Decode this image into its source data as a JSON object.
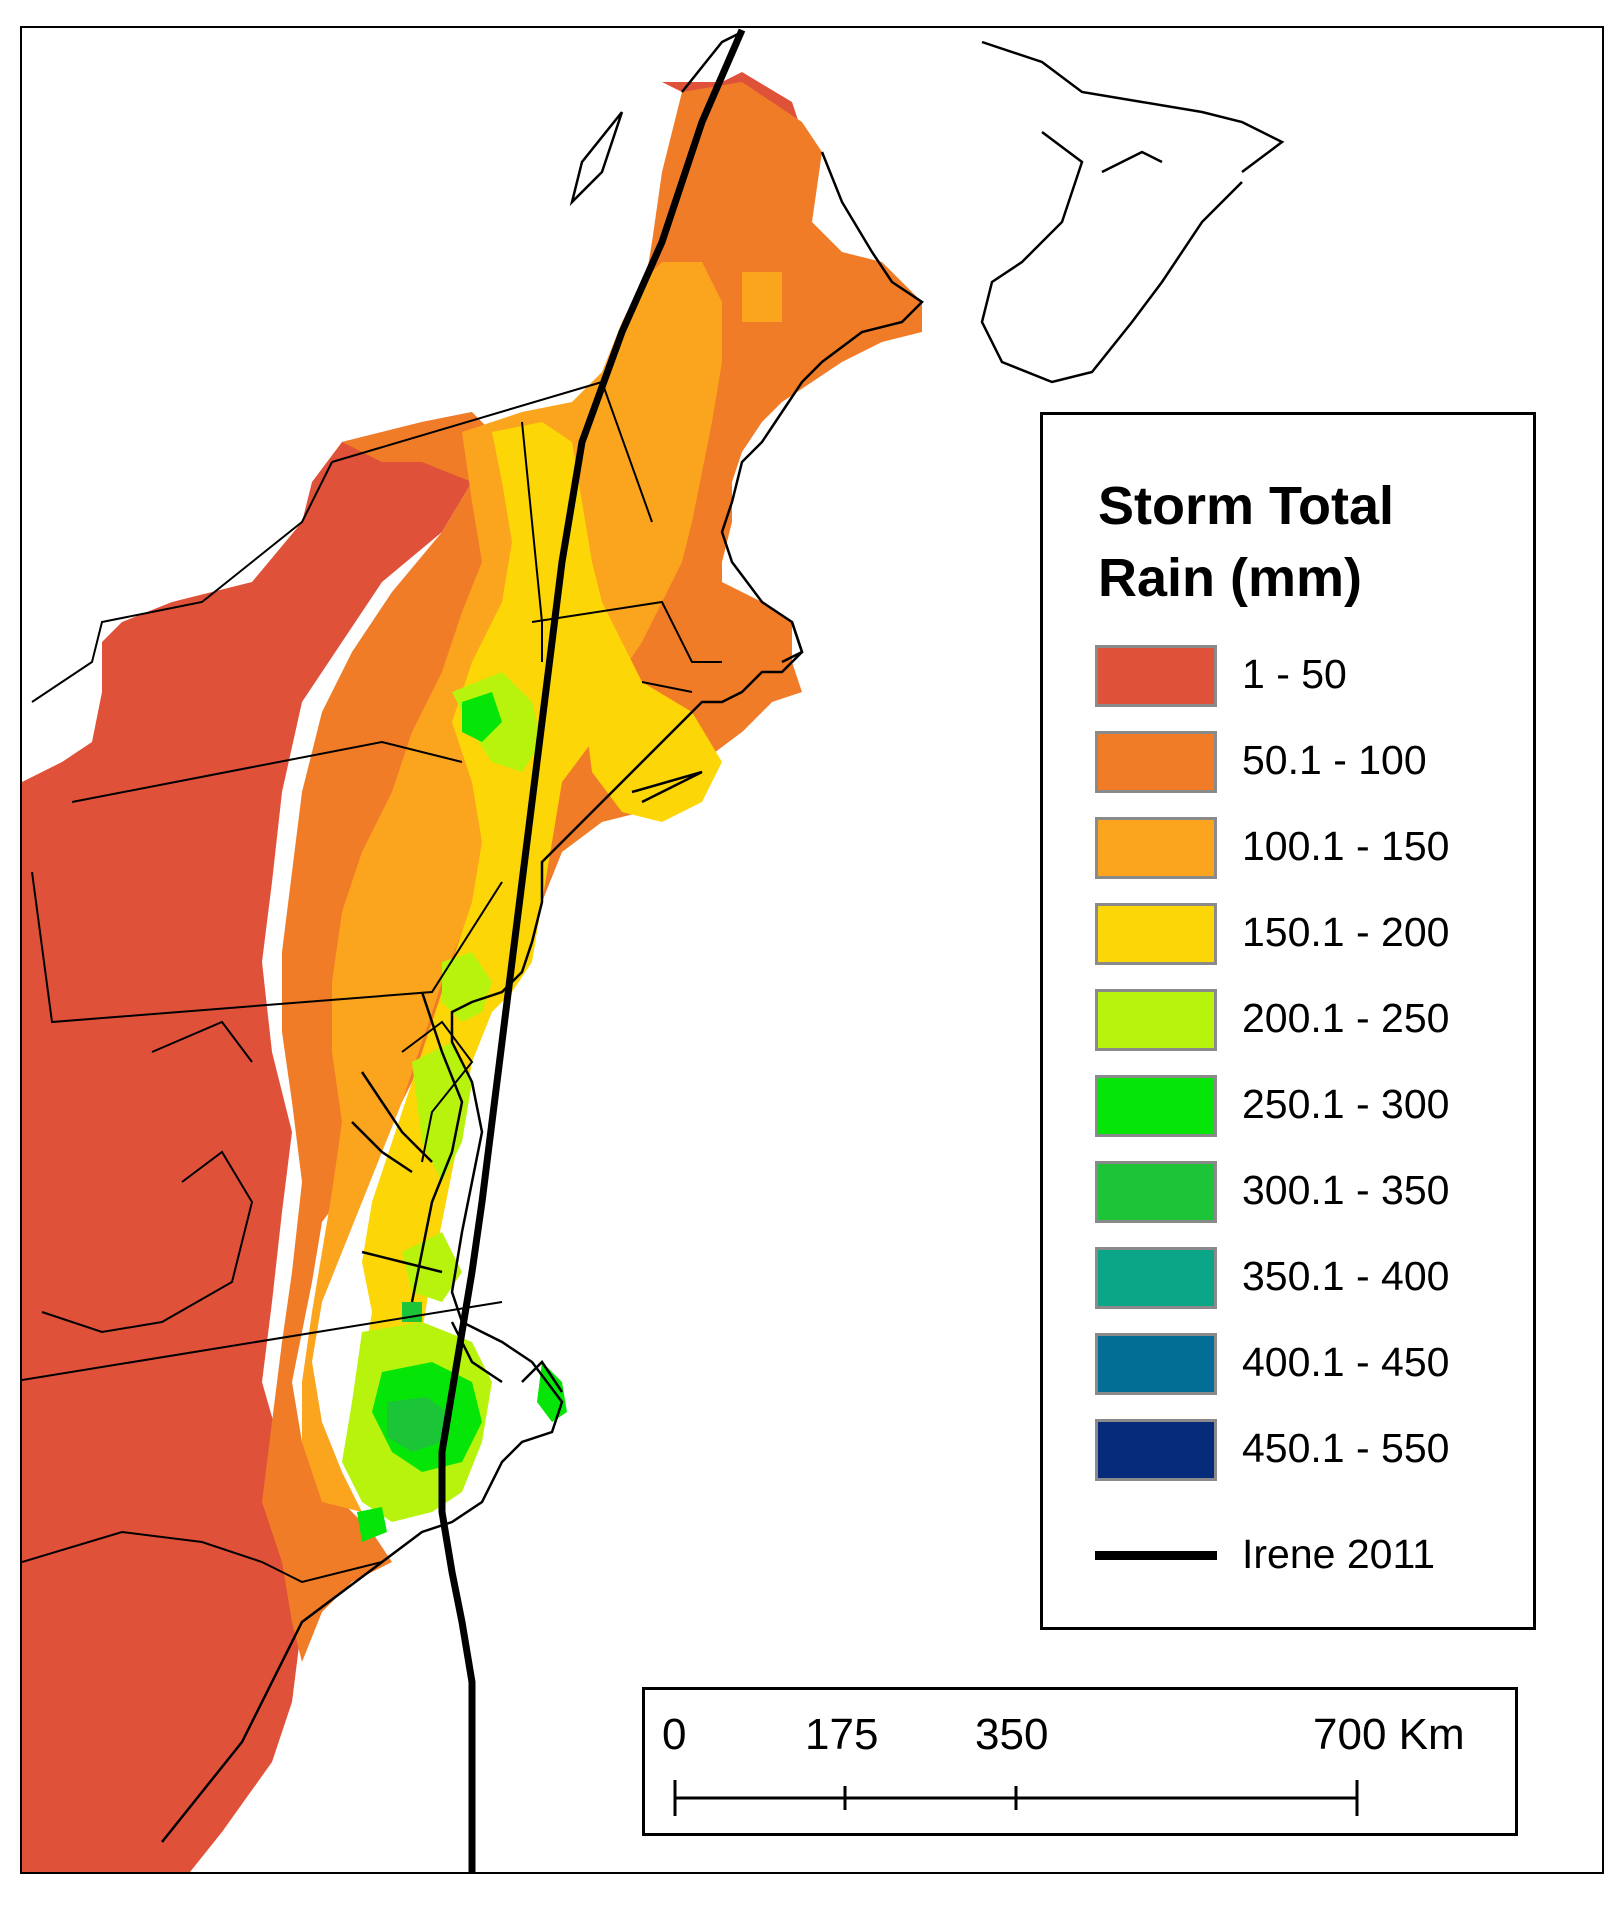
{
  "legend": {
    "title_line1": "Storm Total",
    "title_line2": "Rain (mm)",
    "classes": [
      {
        "label": "1 - 50",
        "color": "#e0513a"
      },
      {
        "label": "50.1 - 100",
        "color": "#f07c28"
      },
      {
        "label": "100.1 - 150",
        "color": "#fba51e"
      },
      {
        "label": "150.1 - 200",
        "color": "#fdd607"
      },
      {
        "label": "200.1 - 250",
        "color": "#b7f30c"
      },
      {
        "label": "250.1 - 300",
        "color": "#06e508"
      },
      {
        "label": "300.1 - 350",
        "color": "#1cc438"
      },
      {
        "label": "350.1 - 400",
        "color": "#0ba688"
      },
      {
        "label": "400.1 - 450",
        "color": "#036e95"
      },
      {
        "label": "450.1 - 550",
        "color": "#062b7a"
      }
    ],
    "track_label": "Irene 2011",
    "track_color": "#000000"
  },
  "scalebar": {
    "labels": [
      "0",
      "175",
      "350",
      "700 Km"
    ]
  }
}
